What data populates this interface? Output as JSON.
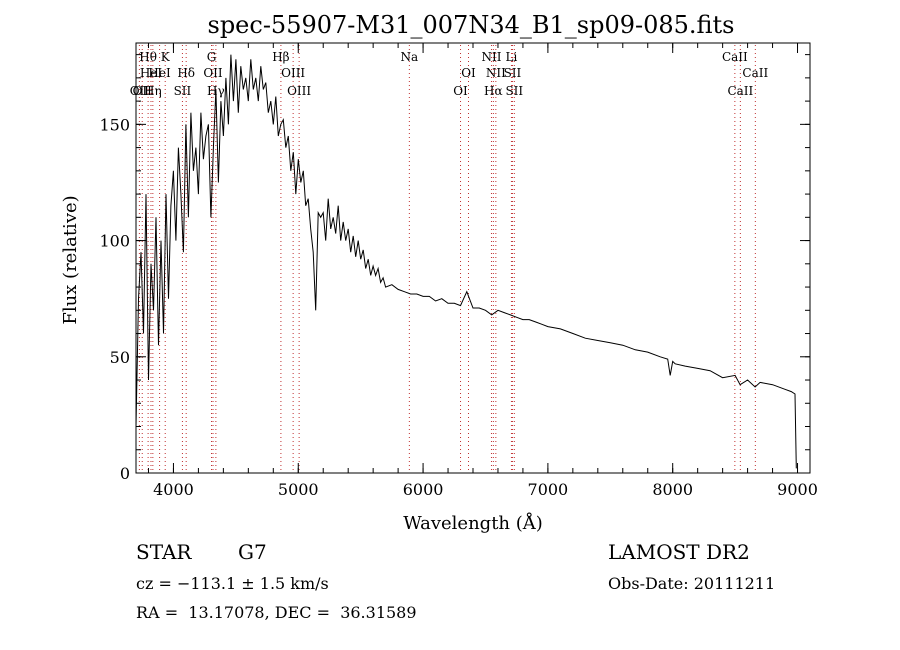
{
  "chart_data": {
    "type": "line",
    "title": "spec-55907-M31_007N34_B1_sp09-085.fits",
    "xlabel": "Wavelength (Å)",
    "ylabel": "Flux (relative)",
    "xlim": [
      3700,
      9100
    ],
    "ylim": [
      0,
      185
    ],
    "xticks": [
      4000,
      5000,
      6000,
      7000,
      8000,
      9000
    ],
    "yticks": [
      0,
      50,
      100,
      150
    ],
    "x_minor_step": 200,
    "y_minor_step": 10,
    "grid": false,
    "legend": "none",
    "colors": {
      "line": "#000000",
      "marker_lines": "#c03030",
      "axes": "#000000"
    },
    "series": [
      {
        "x": [
          3700,
          3720,
          3740,
          3760,
          3780,
          3800,
          3820,
          3840,
          3860,
          3880,
          3900,
          3920,
          3940,
          3960,
          3980,
          4000,
          4020,
          4040,
          4060,
          4080,
          4100,
          4120,
          4140,
          4160,
          4180,
          4200,
          4220,
          4240,
          4260,
          4280,
          4300,
          4320,
          4340,
          4360,
          4380,
          4400,
          4420,
          4440,
          4460,
          4480,
          4500,
          4520,
          4540,
          4560,
          4580,
          4600,
          4620,
          4640,
          4660,
          4680,
          4700,
          4720,
          4740,
          4760,
          4780,
          4800,
          4820,
          4840,
          4860,
          4880,
          4900,
          4920,
          4940,
          4960,
          4980,
          5000,
          5020,
          5040,
          5060,
          5080,
          5100,
          5120,
          5140,
          5160,
          5180,
          5200,
          5220,
          5240,
          5260,
          5280,
          5300,
          5320,
          5340,
          5360,
          5380,
          5400,
          5420,
          5440,
          5460,
          5480,
          5500,
          5520,
          5540,
          5560,
          5580,
          5600,
          5620,
          5640,
          5660,
          5680,
          5700,
          5750,
          5800,
          5850,
          5900,
          5950,
          6000,
          6050,
          6100,
          6150,
          6200,
          6250,
          6300,
          6350,
          6400,
          6450,
          6500,
          6550,
          6600,
          6650,
          6700,
          6750,
          6800,
          6850,
          6900,
          6950,
          7000,
          7100,
          7200,
          7300,
          7400,
          7500,
          7600,
          7700,
          7800,
          7900,
          7960,
          7980,
          8000,
          8020,
          8100,
          8200,
          8300,
          8400,
          8500,
          8540,
          8600,
          8660,
          8700,
          8800,
          8900,
          8950,
          8980,
          8990
        ],
        "y": [
          20,
          75,
          95,
          60,
          120,
          40,
          90,
          70,
          110,
          55,
          100,
          60,
          120,
          75,
          115,
          130,
          100,
          140,
          120,
          95,
          150,
          110,
          155,
          130,
          140,
          120,
          155,
          135,
          145,
          150,
          110,
          140,
          165,
          125,
          160,
          145,
          170,
          150,
          180,
          160,
          178,
          155,
          175,
          165,
          170,
          160,
          178,
          165,
          170,
          160,
          175,
          165,
          168,
          155,
          160,
          150,
          162,
          145,
          150,
          152,
          140,
          145,
          130,
          138,
          120,
          135,
          125,
          130,
          115,
          118,
          105,
          95,
          70,
          112,
          110,
          112,
          100,
          118,
          105,
          110,
          103,
          115,
          100,
          108,
          100,
          105,
          95,
          102,
          93,
          100,
          92,
          96,
          88,
          92,
          85,
          89,
          85,
          88,
          82,
          84,
          80,
          81,
          79,
          78,
          77,
          77,
          76,
          76,
          74,
          75,
          73,
          73,
          72,
          78,
          71,
          71,
          70,
          68,
          70,
          69,
          68,
          67,
          66,
          66,
          65,
          64,
          63,
          62,
          60,
          58,
          57,
          56,
          55,
          53,
          52,
          50,
          49,
          42,
          48,
          47,
          46,
          45,
          44,
          41,
          42,
          38,
          40,
          37,
          39,
          38,
          36,
          35,
          34,
          2
        ]
      }
    ],
    "lines": [
      {
        "x": 3727,
        "label": "OII",
        "row": 3
      },
      {
        "x": 3750,
        "label": "OII",
        "row": 3
      },
      {
        "x": 3797,
        "label": "Hθ",
        "row": 1
      },
      {
        "x": 3820,
        "label": "HeI",
        "row": 2
      },
      {
        "x": 3835,
        "label": "Hη",
        "row": 3
      },
      {
        "x": 3889,
        "label": "HeI",
        "row": 2
      },
      {
        "x": 3934,
        "label": "K",
        "row": 1
      },
      {
        "x": 4102,
        "label": "Hδ",
        "row": 2
      },
      {
        "x": 4072,
        "label": "SII",
        "row": 3
      },
      {
        "x": 4305,
        "label": "G",
        "row": 1
      },
      {
        "x": 4317,
        "label": "OII",
        "row": 2
      },
      {
        "x": 4340,
        "label": "Hγ",
        "row": 3
      },
      {
        "x": 4861,
        "label": "Hβ",
        "row": 1
      },
      {
        "x": 4959,
        "label": "OIII",
        "row": 2
      },
      {
        "x": 5007,
        "label": "OIII",
        "row": 3
      },
      {
        "x": 5890,
        "label": "Na",
        "row": 1
      },
      {
        "x": 6300,
        "label": "OI",
        "row": 3
      },
      {
        "x": 6364,
        "label": "OI",
        "row": 2
      },
      {
        "x": 6548,
        "label": "NII",
        "row": 1
      },
      {
        "x": 6583,
        "label": "NII",
        "row": 2
      },
      {
        "x": 6563,
        "label": "Hα",
        "row": 3
      },
      {
        "x": 6708,
        "label": "Li",
        "row": 1
      },
      {
        "x": 6716,
        "label": "SII",
        "row": 2
      },
      {
        "x": 6731,
        "label": "SII",
        "row": 3
      },
      {
        "x": 8498,
        "label": "CaII",
        "row": 1
      },
      {
        "x": 8542,
        "label": "CaII",
        "row": 3
      },
      {
        "x": 8662,
        "label": "CaII",
        "row": 2
      }
    ]
  },
  "footer": {
    "object_class": "STAR",
    "subclass": "G7",
    "survey": "LAMOST DR2",
    "velocity": "cz = −113.1 ± 1.5 km/s",
    "obs_date": "Obs-Date: 20111211",
    "coords": "RA =  13.17078, DEC =  36.31589"
  }
}
